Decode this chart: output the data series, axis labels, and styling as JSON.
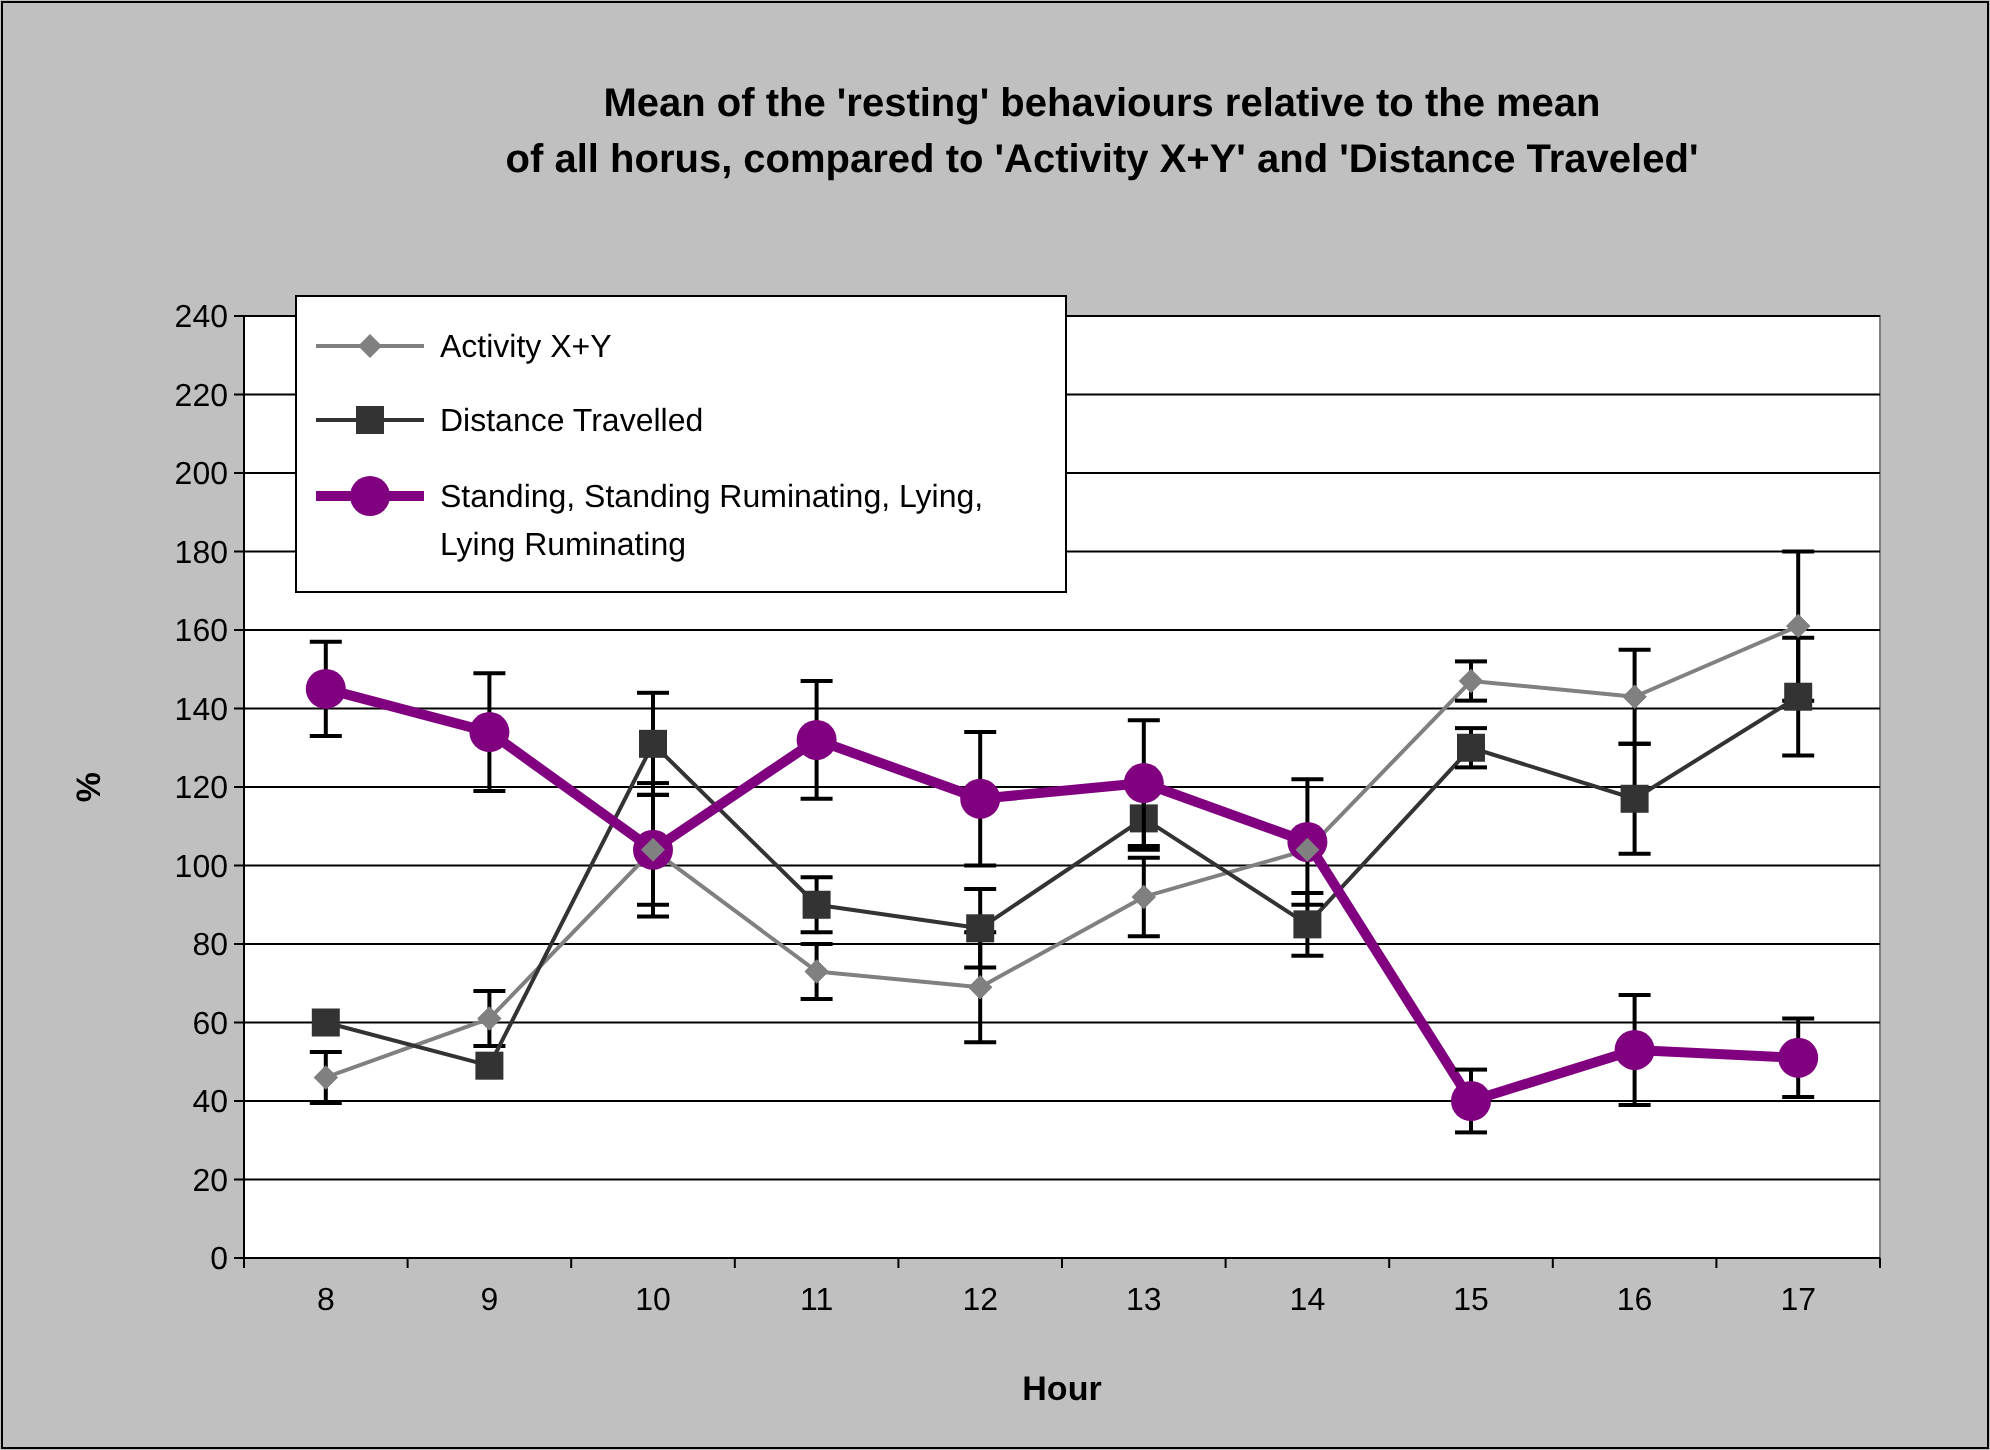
{
  "chart_data": {
    "type": "line",
    "title": "Mean of the 'resting' behaviours relative to the mean of all horus, compared to 'Activity X+Y' and 'Distance Traveled'",
    "xlabel": "Hour",
    "ylabel": "%",
    "categories": [
      "8",
      "9",
      "10",
      "11",
      "12",
      "13",
      "14",
      "15",
      "16",
      "17"
    ],
    "ylim": [
      0,
      240
    ],
    "yticks": [
      0,
      20,
      40,
      60,
      80,
      100,
      120,
      140,
      160,
      180,
      200,
      220,
      240
    ],
    "grid": "y",
    "legend": "top left",
    "series": [
      {
        "name": "Activity X+Y",
        "color": "#808080",
        "marker": "diamond",
        "values": [
          46,
          61,
          104,
          73,
          69,
          92,
          104,
          147,
          143,
          161
        ],
        "errors": [
          6.5,
          7,
          17,
          7,
          14,
          10,
          null,
          5,
          12,
          19
        ]
      },
      {
        "name": "Distance Travelled",
        "color": "#333333",
        "marker": "square",
        "values": [
          60,
          49,
          131,
          90,
          84,
          112,
          85,
          130,
          117,
          143
        ],
        "errors": [
          null,
          null,
          13,
          7,
          10,
          8,
          8,
          5,
          14,
          15
        ]
      },
      {
        "name": "Standing, Standing Ruminating, Lying, Lying Ruminating",
        "color": "#800080",
        "marker": "circle",
        "values": [
          145,
          134,
          104,
          132,
          117,
          121,
          106,
          40,
          53,
          51
        ],
        "errors": [
          12,
          15,
          14,
          15,
          17,
          16,
          16,
          8,
          14,
          10
        ]
      }
    ]
  }
}
